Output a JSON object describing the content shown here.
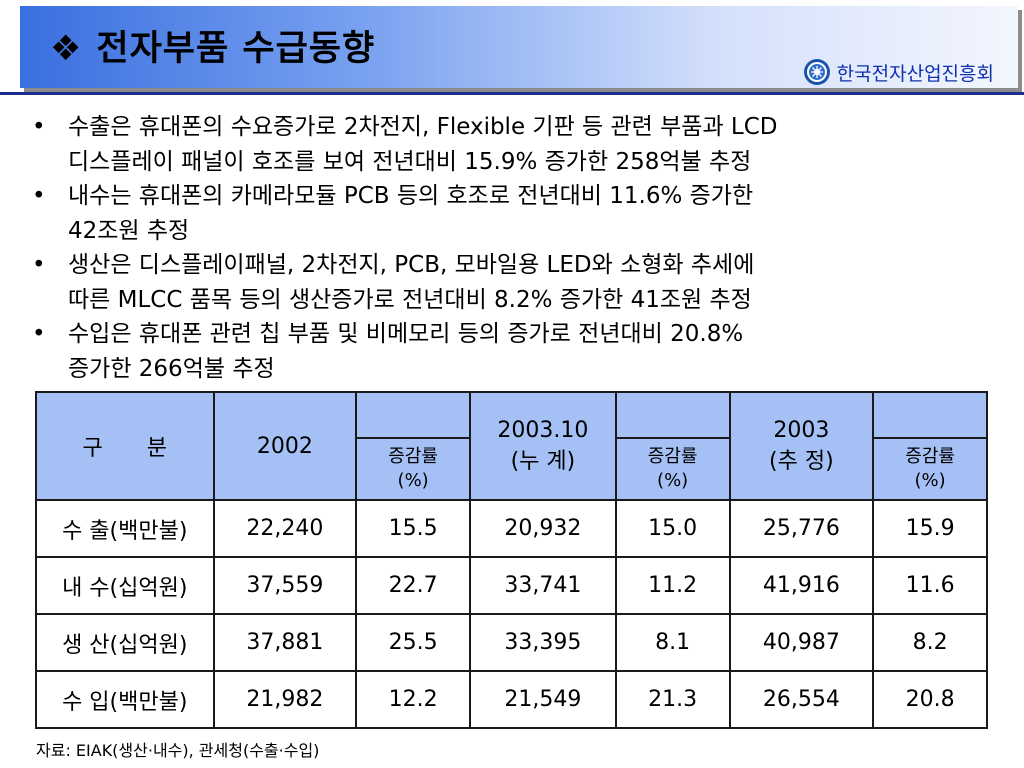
{
  "header": {
    "bullet": "❖",
    "title": "전자부품 수급동향",
    "org_name": "한국전자산업진흥회"
  },
  "bullets": [
    {
      "marker": "•",
      "line1": "수출은 휴대폰의 수요증가로 2차전지, Flexible 기판 등 관련 부품과 LCD",
      "line2": "디스플레이 패널이 호조를 보여 전년대비 15.9% 증가한 258억불 추정"
    },
    {
      "marker": "•",
      "line1": "내수는 휴대폰의 카메라모듈 PCB 등의 호조로 전년대비 11.6% 증가한",
      "line2": "42조원 추정"
    },
    {
      "marker": "•",
      "line1": "생산은 디스플레이패널, 2차전지, PCB, 모바일용 LED와 소형화 추세에",
      "line2": "따른 MLCC 품목 등의 생산증가로 전년대비 8.2% 증가한 41조원 추정"
    },
    {
      "marker": "•",
      "line1": "수입은 휴대폰 관련 칩 부품 및 비메모리 등의 증가로 전년대비 20.8%",
      "line2": "증가한 266억불 추정"
    }
  ],
  "table": {
    "col_category": "구　　분",
    "col_2002": "2002",
    "col_2003_10": "2003.10",
    "col_2003_10_sub": "(누 계)",
    "col_2003": "2003",
    "col_2003_sub": "(추 정)",
    "rate_label": "증감률",
    "rate_unit": "(%)",
    "rows": [
      {
        "label": "수 출(백만불)",
        "y2002": "22,240",
        "r1": "15.5",
        "y2003_10": "20,932",
        "r2": "15.0",
        "y2003": "25,776",
        "r3": "15.9"
      },
      {
        "label": "내 수(십억원)",
        "y2002": "37,559",
        "r1": "22.7",
        "y2003_10": "33,741",
        "r2": "11.2",
        "y2003": "41,916",
        "r3": "11.6"
      },
      {
        "label": "생 산(십억원)",
        "y2002": "37,881",
        "r1": "25.5",
        "y2003_10": "33,395",
        "r2": "8.1",
        "y2003": "40,987",
        "r3": "8.2"
      },
      {
        "label": "수 입(백만불)",
        "y2002": "21,982",
        "r1": "12.2",
        "y2003_10": "21,549",
        "r2": "21.3",
        "y2003": "26,554",
        "r3": "20.8"
      }
    ]
  },
  "source": "자료: EIAK(생산·내수), 관세청(수출·수입)",
  "colors": {
    "title_gradient_start": "#3a6fe0",
    "table_header": "#a5c0f4",
    "org_text": "#1030b0",
    "rule": "#1a2f8a"
  }
}
